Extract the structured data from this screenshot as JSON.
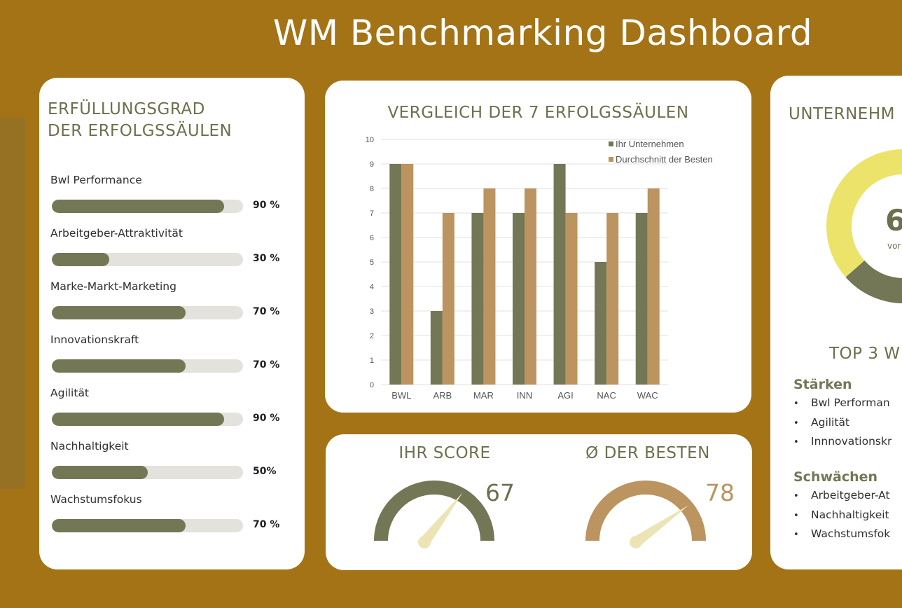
{
  "title": "WM Benchmarking Dashboard",
  "colors": {
    "background": "#a47316",
    "company": "#737755",
    "best": "#bc9460",
    "track": "#e3e2dc",
    "donut_yellow": "#ece46a"
  },
  "pillars_card": {
    "heading_line1": "ERFÜLLUNGSGRAD",
    "heading_line2": "DER ERFOLGSSÄULEN",
    "items": [
      {
        "label": "Bwl Performance",
        "pct_text": "90 %",
        "value": 90
      },
      {
        "label": "Arbeitgeber-Attraktivität",
        "pct_text": "30 %",
        "value": 30
      },
      {
        "label": "Marke-Markt-Marketing",
        "pct_text": "70 %",
        "value": 70
      },
      {
        "label": "Innovationskraft",
        "pct_text": "70 %",
        "value": 70
      },
      {
        "label": "Agilität",
        "pct_text": "90 %",
        "value": 90
      },
      {
        "label": "Nachhaltigkeit",
        "pct_text": "50%",
        "value": 50
      },
      {
        "label": "Wachstumsfokus",
        "pct_text": "70 %",
        "value": 70
      }
    ]
  },
  "chart_data": {
    "type": "bar",
    "title": "VERGLEICH DER 7 ERFOLGSSÄULEN",
    "categories": [
      "BWL",
      "ARB",
      "MAR",
      "INN",
      "AGI",
      "NAC",
      "WAC"
    ],
    "series": [
      {
        "name": "Ihr Unternehmen",
        "color": "#737755",
        "values": [
          9,
          3,
          7,
          7,
          9,
          5,
          7
        ]
      },
      {
        "name": "Durchschnitt der Besten",
        "color": "#bc9460",
        "values": [
          9,
          7,
          8,
          8,
          7,
          7,
          8
        ]
      }
    ],
    "ylim": [
      0,
      10
    ],
    "yticks": [
      "0",
      "1",
      "2",
      "3",
      "4",
      "5",
      "6",
      "7",
      "8",
      "9",
      "10"
    ],
    "grid": true,
    "legend": "top-right"
  },
  "scores": {
    "own": {
      "label": "IHR SCORE",
      "value_text": "67",
      "value": 67
    },
    "best": {
      "label": "Ø DER BESTEN",
      "value_text": "78",
      "value": 78
    }
  },
  "right_card": {
    "heading": "UNTERNEHM",
    "donut_value": "6",
    "donut_sub": "vor",
    "top3_heading": "TOP 3 W",
    "strengths_heading": "Stärken",
    "strengths": [
      "Bwl Performan",
      "Agilität",
      "Innnovationskr"
    ],
    "weaknesses_heading": "Schwächen",
    "weaknesses": [
      "Arbeitgeber-At",
      "Nachhaltigkeit",
      "Wachstumsfok"
    ],
    "bullet": "•"
  }
}
